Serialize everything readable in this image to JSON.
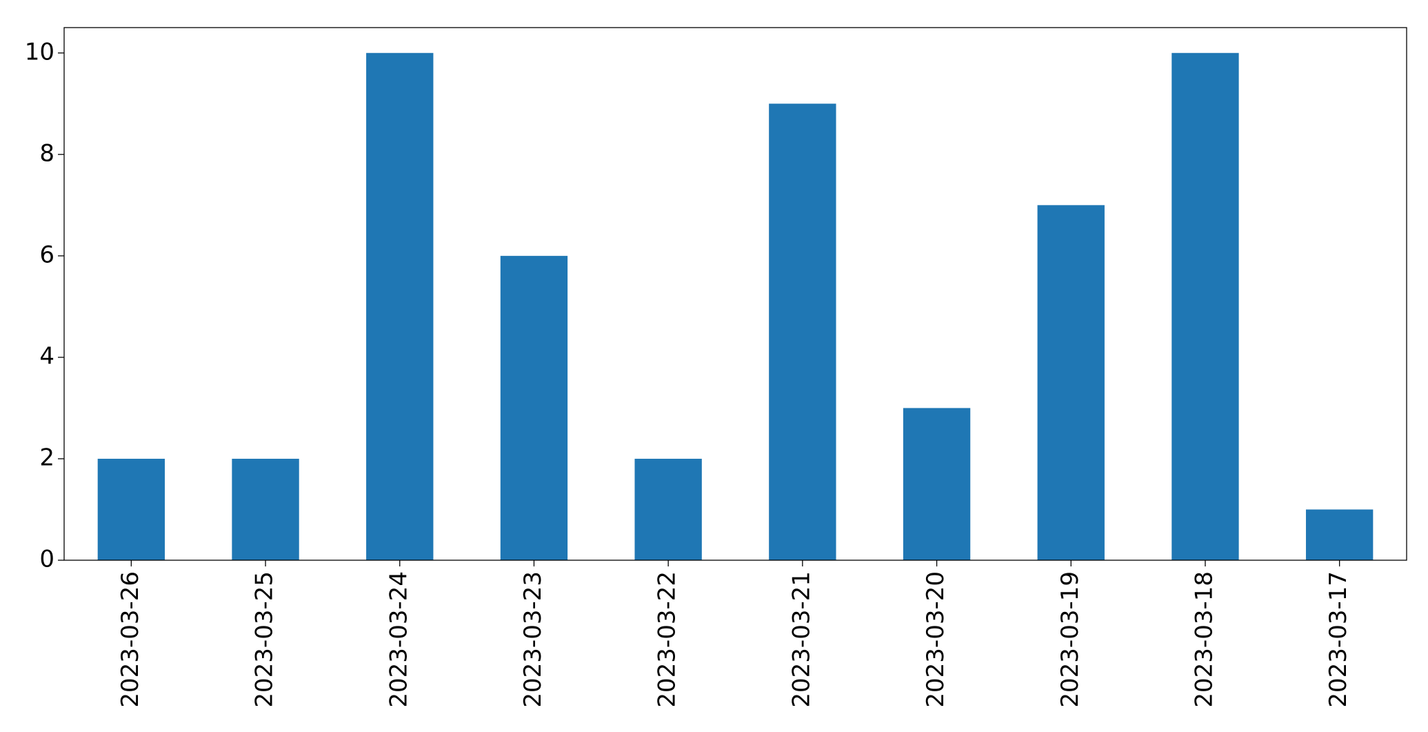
{
  "chart_data": {
    "type": "bar",
    "categories": [
      "2023-03-26",
      "2023-03-25",
      "2023-03-24",
      "2023-03-23",
      "2023-03-22",
      "2023-03-21",
      "2023-03-20",
      "2023-03-19",
      "2023-03-18",
      "2023-03-17"
    ],
    "values": [
      2,
      2,
      10,
      6,
      2,
      9,
      3,
      7,
      10,
      1
    ],
    "color": "#1f77b4",
    "ylim": [
      0,
      10.5
    ],
    "yticks": [
      0,
      2,
      4,
      6,
      8,
      10
    ],
    "grid": false
  }
}
